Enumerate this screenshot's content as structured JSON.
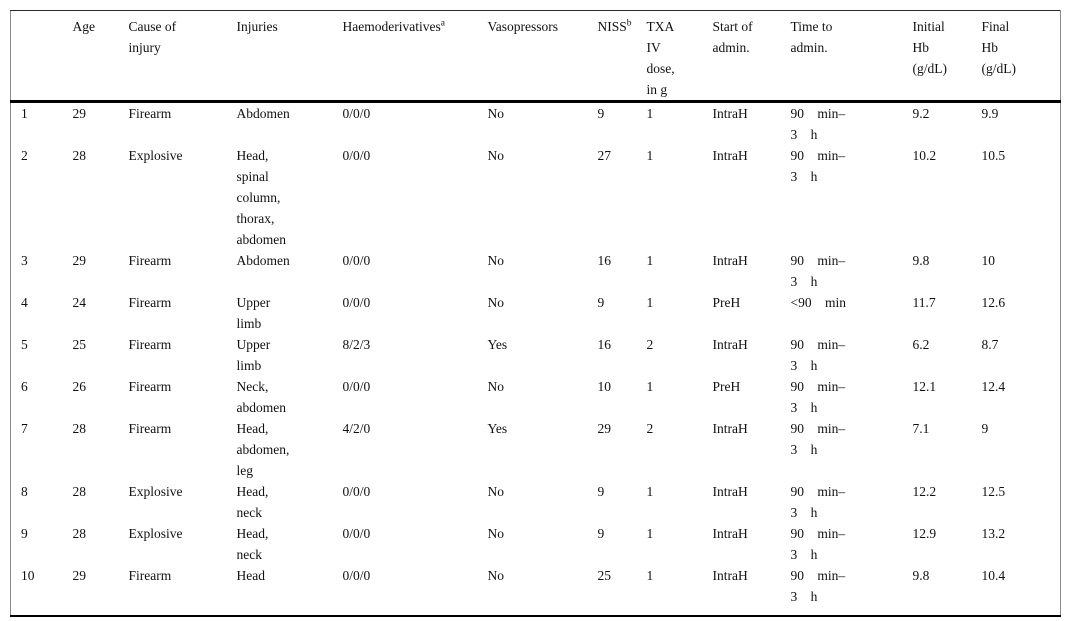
{
  "table": {
    "headers": [
      {
        "key": "id",
        "label": ""
      },
      {
        "key": "age",
        "label": "Age"
      },
      {
        "key": "cause",
        "label": "Cause of\ninjury"
      },
      {
        "key": "injuries",
        "label": "Injuries"
      },
      {
        "key": "haemoderivatives",
        "label": "Haemoderivatives",
        "sup": "a"
      },
      {
        "key": "vasopressors",
        "label": "Vasopressors"
      },
      {
        "key": "niss",
        "label": "NISS",
        "sup": "b"
      },
      {
        "key": "txa_dose",
        "label": "TXA\nIV\ndose,\nin g"
      },
      {
        "key": "start_admin",
        "label": "Start of\nadmin."
      },
      {
        "key": "time_admin",
        "label": "Time to\nadmin."
      },
      {
        "key": "initial_hb",
        "label": "Initial\nHb\n(g/dL)"
      },
      {
        "key": "final_hb",
        "label": "Final\nHb\n(g/dL)"
      }
    ],
    "rows": [
      {
        "id": "1",
        "age": "29",
        "cause": "Firearm",
        "injuries": "Abdomen",
        "haemoderivatives": "0/0/0",
        "vasopressors": "No",
        "niss": "9",
        "txa_dose": "1",
        "start_admin": "IntraH",
        "time_admin": "90 min–\n3 h",
        "initial_hb": "9.2",
        "final_hb": "9.9"
      },
      {
        "id": "2",
        "age": "28",
        "cause": "Explosive",
        "injuries": "Head,\nspinal\ncolumn,\nthorax,\nabdomen",
        "haemoderivatives": "0/0/0",
        "vasopressors": "No",
        "niss": "27",
        "txa_dose": "1",
        "start_admin": "IntraH",
        "time_admin": "90 min–\n3 h",
        "initial_hb": "10.2",
        "final_hb": "10.5"
      },
      {
        "id": "3",
        "age": "29",
        "cause": "Firearm",
        "injuries": "Abdomen",
        "haemoderivatives": "0/0/0",
        "vasopressors": "No",
        "niss": "16",
        "txa_dose": "1",
        "start_admin": "IntraH",
        "time_admin": "90 min–\n3 h",
        "initial_hb": "9.8",
        "final_hb": "10"
      },
      {
        "id": "4",
        "age": "24",
        "cause": "Firearm",
        "injuries": "Upper\nlimb",
        "haemoderivatives": "0/0/0",
        "vasopressors": "No",
        "niss": "9",
        "txa_dose": "1",
        "start_admin": "PreH",
        "time_admin": "<90 min",
        "initial_hb": "11.7",
        "final_hb": "12.6"
      },
      {
        "id": "5",
        "age": "25",
        "cause": "Firearm",
        "injuries": "Upper\nlimb",
        "haemoderivatives": "8/2/3",
        "vasopressors": "Yes",
        "niss": "16",
        "txa_dose": "2",
        "start_admin": "IntraH",
        "time_admin": "90 min–\n3 h",
        "initial_hb": "6.2",
        "final_hb": "8.7"
      },
      {
        "id": "6",
        "age": "26",
        "cause": "Firearm",
        "injuries": "Neck,\nabdomen",
        "haemoderivatives": "0/0/0",
        "vasopressors": "No",
        "niss": "10",
        "txa_dose": "1",
        "start_admin": "PreH",
        "time_admin": "90 min–\n3 h",
        "initial_hb": "12.1",
        "final_hb": "12.4"
      },
      {
        "id": "7",
        "age": "28",
        "cause": "Firearm",
        "injuries": "Head,\nabdomen,\nleg",
        "haemoderivatives": "4/2/0",
        "vasopressors": "Yes",
        "niss": "29",
        "txa_dose": "2",
        "start_admin": "IntraH",
        "time_admin": "90 min–\n3 h",
        "initial_hb": "7.1",
        "final_hb": "9"
      },
      {
        "id": "8",
        "age": "28",
        "cause": "Explosive",
        "injuries": "Head,\nneck",
        "haemoderivatives": "0/0/0",
        "vasopressors": "No",
        "niss": "9",
        "txa_dose": "1",
        "start_admin": "IntraH",
        "time_admin": "90 min–\n3 h",
        "initial_hb": "12.2",
        "final_hb": "12.5"
      },
      {
        "id": "9",
        "age": "28",
        "cause": "Explosive",
        "injuries": "Head,\nneck",
        "haemoderivatives": "0/0/0",
        "vasopressors": "No",
        "niss": "9",
        "txa_dose": "1",
        "start_admin": "IntraH",
        "time_admin": "90 min–\n3 h",
        "initial_hb": "12.9",
        "final_hb": "13.2"
      },
      {
        "id": "10",
        "age": "29",
        "cause": "Firearm",
        "injuries": "Head",
        "haemoderivatives": "0/0/0",
        "vasopressors": "No",
        "niss": "25",
        "txa_dose": "1",
        "start_admin": "IntraH",
        "time_admin": "90 min–\n3 h",
        "initial_hb": "9.8",
        "final_hb": "10.4"
      }
    ]
  }
}
